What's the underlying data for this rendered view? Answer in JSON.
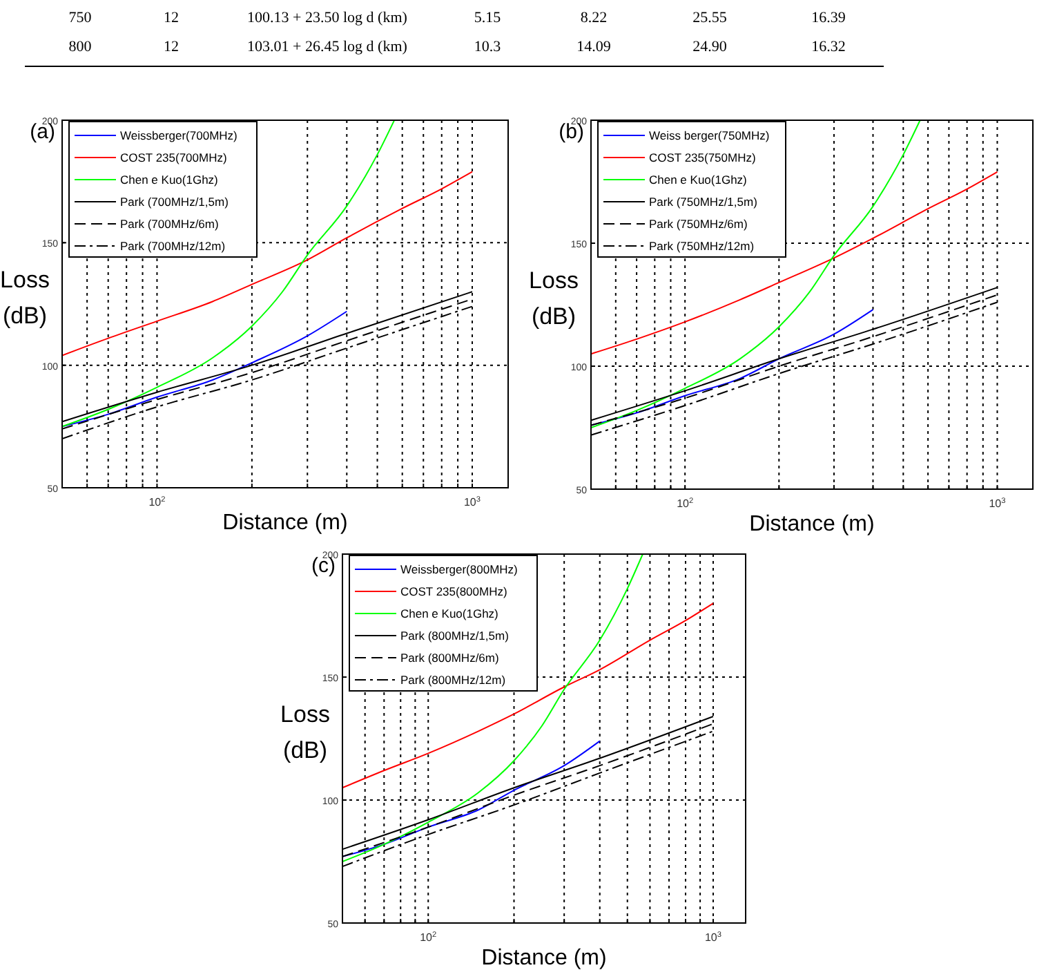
{
  "chart_data": [
    {
      "type": "other",
      "annotations": [
        "750",
        "12",
        "100.13 + 23.50 log d (km)",
        "5.15",
        "8.22",
        "25.55",
        "16.39",
        "800",
        "12",
        "103.01 + 26.45 log d (km)",
        "10.3",
        "14.09",
        "24.90",
        "16.32"
      ]
    },
    {
      "type": "line",
      "title": "(a)",
      "xlabel": "Distance (m)",
      "ylabel": "Loss (dB)",
      "log": "x",
      "grid": true,
      "legend": "top left",
      "xlim": [
        50,
        1300
      ],
      "ylim": [
        50,
        200
      ],
      "xticks": [
        {
          "value": 60,
          "label": null
        },
        {
          "value": 70,
          "label": null
        },
        {
          "value": 80,
          "label": null
        },
        {
          "value": 90,
          "label": null
        },
        {
          "value": 100,
          "label": "10$^{2}$"
        },
        {
          "value": 200,
          "label": null
        },
        {
          "value": 300,
          "label": null
        },
        {
          "value": 400,
          "label": null
        },
        {
          "value": 500,
          "label": null
        },
        {
          "value": 600,
          "label": null
        },
        {
          "value": 700,
          "label": null
        },
        {
          "value": 800,
          "label": null
        },
        {
          "value": 900,
          "label": null
        },
        {
          "value": 1000,
          "label": "10$^{3}$"
        }
      ],
      "yticks": [
        50,
        100,
        150,
        200
      ],
      "series": [
        {
          "name": "Weissberger(700MHz)",
          "color": "#0000ff",
          "line_style": "solid",
          "x": [
            50,
            70,
            100,
            150,
            200,
            300,
            400
          ],
          "values": [
            75,
            80,
            87,
            94,
            101,
            112,
            122
          ]
        },
        {
          "name": "COST 235(700MHz)",
          "color": "#ff0000",
          "line_style": "solid",
          "x": [
            50,
            70,
            100,
            150,
            200,
            300,
            400,
            600,
            800,
            1000
          ],
          "values": [
            104,
            111,
            118,
            126,
            133,
            143,
            152,
            164,
            172,
            179
          ]
        },
        {
          "name": "Chen e Kuo(1Ghz)",
          "color": "#00ff00",
          "line_style": "solid",
          "x": [
            50,
            70,
            100,
            150,
            200,
            250,
            300,
            400,
            500,
            566
          ],
          "values": [
            75,
            82,
            91,
            103,
            116,
            130,
            145,
            165,
            186,
            200
          ]
        },
        {
          "name": "Park (700MHz/1,5m)",
          "color": "#000000",
          "line_style": "solid",
          "x": [
            50,
            100,
            200,
            400,
            1000
          ],
          "values": [
            77,
            89,
            100,
            113,
            130
          ]
        },
        {
          "name": "Park (700MHz/6m)",
          "color": "#000000",
          "line_style": "dashed",
          "x": [
            50,
            100,
            200,
            400,
            1000
          ],
          "values": [
            74,
            86,
            97,
            110,
            127
          ]
        },
        {
          "name": "Park (700MHz/12m)",
          "color": "#000000",
          "line_style": "dashdot",
          "x": [
            50,
            100,
            200,
            400,
            1000
          ],
          "values": [
            70,
            83,
            94,
            107,
            124
          ]
        }
      ]
    },
    {
      "type": "line",
      "title": "(b)",
      "xlabel": "Distance (m)",
      "ylabel": "Loss (dB)",
      "log": "x",
      "grid": true,
      "legend": "top left",
      "xlim": [
        50,
        1300
      ],
      "ylim": [
        50,
        200
      ],
      "xticks": [
        {
          "value": 60,
          "label": null
        },
        {
          "value": 70,
          "label": null
        },
        {
          "value": 80,
          "label": null
        },
        {
          "value": 90,
          "label": null
        },
        {
          "value": 100,
          "label": "10$^{2}$"
        },
        {
          "value": 200,
          "label": null
        },
        {
          "value": 300,
          "label": null
        },
        {
          "value": 400,
          "label": null
        },
        {
          "value": 500,
          "label": null
        },
        {
          "value": 600,
          "label": null
        },
        {
          "value": 700,
          "label": null
        },
        {
          "value": 800,
          "label": null
        },
        {
          "value": 900,
          "label": null
        },
        {
          "value": 1000,
          "label": "10$^{3}$"
        }
      ],
      "yticks": [
        50,
        100,
        150,
        200
      ],
      "series": [
        {
          "name": "Weiss berger(750MHz)",
          "color": "#0000ff",
          "line_style": "solid",
          "x": [
            50,
            70,
            100,
            150,
            200,
            300,
            400
          ],
          "values": [
            76,
            81,
            88,
            95,
            103,
            113,
            123
          ]
        },
        {
          "name": "COST 235(750MHz)",
          "color": "#ff0000",
          "line_style": "solid",
          "x": [
            50,
            70,
            100,
            150,
            200,
            300,
            400,
            600,
            800,
            1000
          ],
          "values": [
            105,
            111,
            118,
            127,
            134,
            144,
            152,
            164,
            172,
            179
          ]
        },
        {
          "name": "Chen e Kuo(1Ghz)",
          "color": "#00ff00",
          "line_style": "solid",
          "x": [
            50,
            70,
            100,
            150,
            200,
            250,
            300,
            400,
            500,
            566
          ],
          "values": [
            75,
            82,
            91,
            103,
            116,
            130,
            145,
            165,
            186,
            200
          ]
        },
        {
          "name": "Park (750MHz/1,5m)",
          "color": "#000000",
          "line_style": "solid",
          "x": [
            50,
            100,
            200,
            400,
            1000
          ],
          "values": [
            78,
            90,
            103,
            115,
            132
          ]
        },
        {
          "name": "Park (750MHz/6m)",
          "color": "#000000",
          "line_style": "dashed",
          "x": [
            50,
            100,
            200,
            400,
            1000
          ],
          "values": [
            76,
            87,
            100,
            112,
            129
          ]
        },
        {
          "name": "Park (750MHz/12m)",
          "color": "#000000",
          "line_style": "dashdot",
          "x": [
            50,
            100,
            200,
            400,
            1000
          ],
          "values": [
            72,
            84,
            97,
            109,
            126
          ]
        }
      ]
    },
    {
      "type": "line",
      "title": "(c)",
      "xlabel": "Distance (m)",
      "ylabel": "Loss (dB)",
      "log": "x",
      "grid": true,
      "legend": "top left",
      "xlim": [
        50,
        1300
      ],
      "ylim": [
        50,
        200
      ],
      "xticks": [
        {
          "value": 60,
          "label": null
        },
        {
          "value": 70,
          "label": null
        },
        {
          "value": 80,
          "label": null
        },
        {
          "value": 90,
          "label": null
        },
        {
          "value": 100,
          "label": "10$^{2}$"
        },
        {
          "value": 200,
          "label": null
        },
        {
          "value": 300,
          "label": null
        },
        {
          "value": 400,
          "label": null
        },
        {
          "value": 500,
          "label": null
        },
        {
          "value": 600,
          "label": null
        },
        {
          "value": 700,
          "label": null
        },
        {
          "value": 800,
          "label": null
        },
        {
          "value": 900,
          "label": null
        },
        {
          "value": 1000,
          "label": "10$^{3}$"
        }
      ],
      "yticks": [
        50,
        100,
        150,
        200
      ],
      "series": [
        {
          "name": "Weissberger(800MHz)",
          "color": "#0000ff",
          "line_style": "solid",
          "x": [
            50,
            70,
            100,
            150,
            200,
            300,
            400
          ],
          "values": [
            77,
            82,
            89,
            96,
            104,
            114,
            124
          ]
        },
        {
          "name": "COST 235(800MHz)",
          "color": "#ff0000",
          "line_style": "solid",
          "x": [
            50,
            70,
            100,
            150,
            200,
            300,
            400,
            600,
            800,
            1000
          ],
          "values": [
            105,
            112,
            119,
            128,
            135,
            146,
            153,
            165,
            173,
            180
          ]
        },
        {
          "name": "Chen e Kuo(1Ghz)",
          "color": "#00ff00",
          "line_style": "solid",
          "x": [
            50,
            70,
            100,
            150,
            200,
            250,
            300,
            400,
            500,
            566
          ],
          "values": [
            75,
            82,
            91,
            103,
            116,
            130,
            145,
            165,
            186,
            200
          ]
        },
        {
          "name": "Park (800MHz/1,5m)",
          "color": "#000000",
          "line_style": "solid",
          "x": [
            50,
            100,
            200,
            400,
            1000
          ],
          "values": [
            80,
            92,
            105,
            117,
            134
          ]
        },
        {
          "name": "Park (800MHz/6m)",
          "color": "#000000",
          "line_style": "dashed",
          "x": [
            50,
            100,
            200,
            400,
            1000
          ],
          "values": [
            77,
            89,
            102,
            114,
            131
          ]
        },
        {
          "name": "Park (800MHz/12m)",
          "color": "#000000",
          "line_style": "dashdot",
          "x": [
            50,
            100,
            200,
            400,
            1000
          ],
          "values": [
            73,
            86,
            98,
            111,
            128
          ]
        }
      ]
    }
  ]
}
